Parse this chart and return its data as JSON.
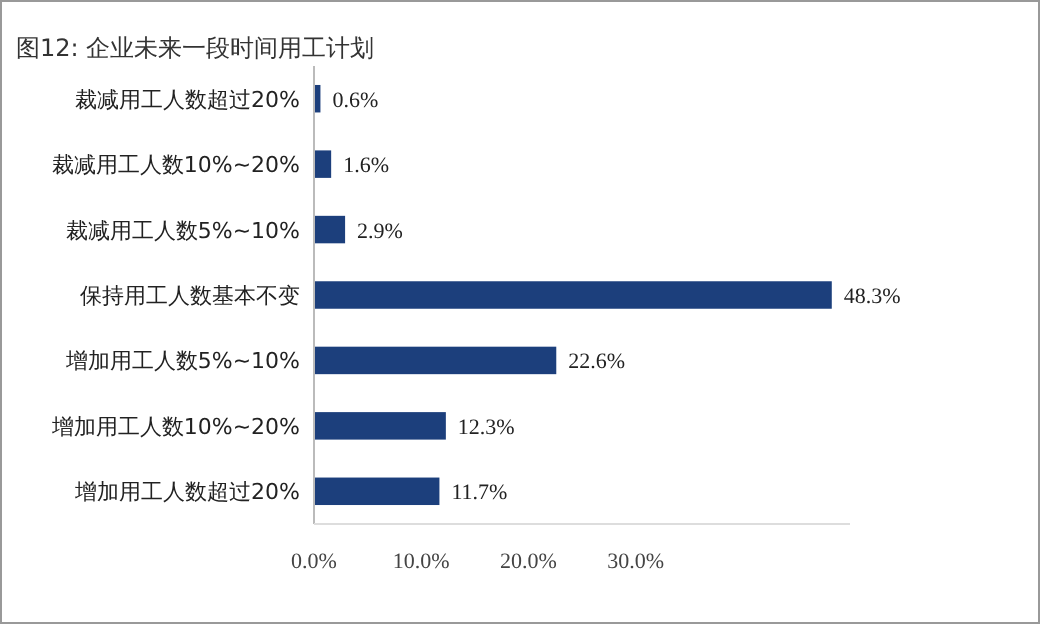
{
  "chart_data": {
    "type": "bar",
    "orientation": "horizontal",
    "title": "图12: 企业未来一段时间用工计划",
    "categories": [
      "裁减用工人数超过20%",
      "裁减用工人数10%~20%",
      "裁减用工人数5%~10%",
      "保持用工人数基本不变",
      "增加用工人数5%~10%",
      "增加用工人数10%~20%",
      "增加用工人数超过20%"
    ],
    "values": [
      0.6,
      1.6,
      2.9,
      48.3,
      22.6,
      12.3,
      11.7
    ],
    "value_labels": [
      "0.6%",
      "1.6%",
      "2.9%",
      "48.3%",
      "22.6%",
      "12.3%",
      "11.7%"
    ],
    "color": "#1c3f7c",
    "xlim": [
      0,
      50
    ],
    "xticks": [
      {
        "value": 0,
        "label": "0.0%"
      },
      {
        "value": 10,
        "label": "10.0%"
      },
      {
        "value": 20,
        "label": "20.0%"
      },
      {
        "value": 30,
        "label": "30.0%"
      }
    ],
    "grid": false
  }
}
